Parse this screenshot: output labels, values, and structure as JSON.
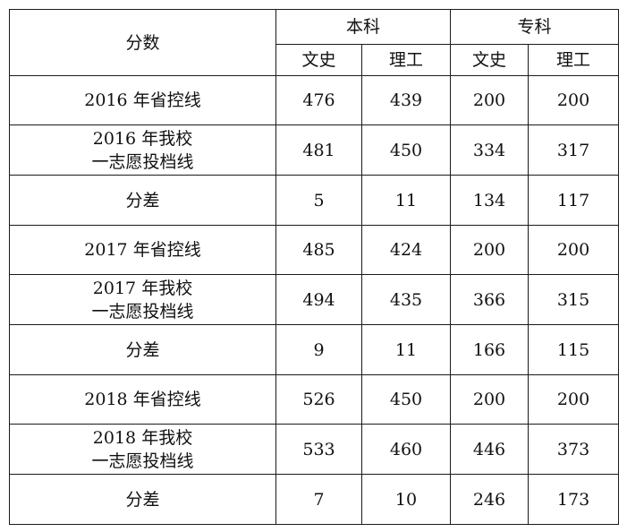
{
  "header": {
    "score_label": "分数",
    "group_benke": "本科",
    "group_zhuanke": "专科",
    "sub_wenshi": "文史",
    "sub_ligong": "理工"
  },
  "rows": [
    {
      "label1": "2016 年省控线",
      "label2": "",
      "v": [
        "476",
        "439",
        "200",
        "200"
      ]
    },
    {
      "label1": "2016 年我校",
      "label2": "一志愿投档线",
      "v": [
        "481",
        "450",
        "334",
        "317"
      ]
    },
    {
      "label1": "分差",
      "label2": "",
      "v": [
        "5",
        "11",
        "134",
        "117"
      ]
    },
    {
      "label1": "2017 年省控线",
      "label2": "",
      "v": [
        "485",
        "424",
        "200",
        "200"
      ]
    },
    {
      "label1": "2017 年我校",
      "label2": "一志愿投档线",
      "v": [
        "494",
        "435",
        "366",
        "315"
      ]
    },
    {
      "label1": "分差",
      "label2": "",
      "v": [
        "9",
        "11",
        "166",
        "115"
      ]
    },
    {
      "label1": "2018 年省控线",
      "label2": "",
      "v": [
        "526",
        "450",
        "200",
        "200"
      ]
    },
    {
      "label1": "2018 年我校",
      "label2": "一志愿投档线",
      "v": [
        "533",
        "460",
        "446",
        "373"
      ]
    },
    {
      "label1": "分差",
      "label2": "",
      "v": [
        "7",
        "10",
        "246",
        "173"
      ]
    }
  ]
}
